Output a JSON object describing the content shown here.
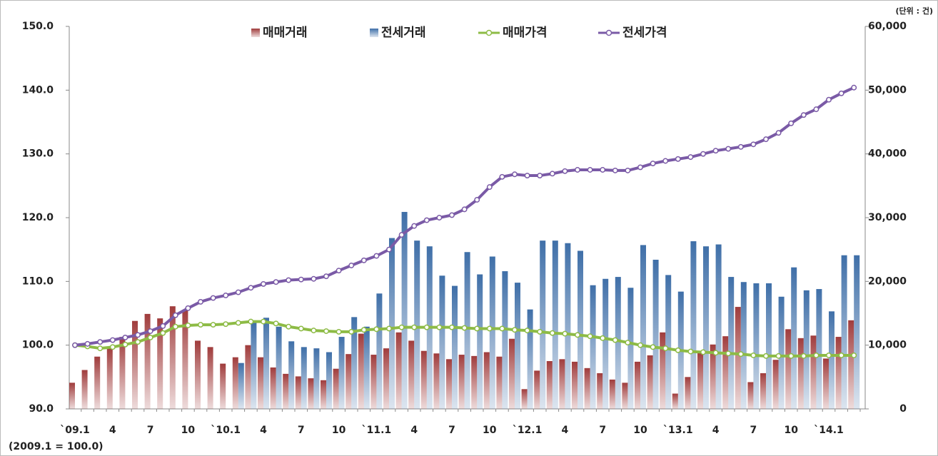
{
  "chart_data": {
    "type": "bar_line",
    "unit_note": "(단위 : 건)",
    "base_note": "(2009.1 = 100.0)",
    "categories": [
      "`09.1",
      null,
      null,
      "4",
      null,
      null,
      "7",
      null,
      null,
      "10",
      null,
      null,
      "`10.1",
      null,
      null,
      "4",
      null,
      null,
      "7",
      null,
      null,
      "10",
      null,
      null,
      "`11.1",
      null,
      null,
      "4",
      null,
      null,
      "7",
      null,
      null,
      "10",
      null,
      null,
      "`12.1",
      null,
      null,
      "4",
      null,
      null,
      "7",
      null,
      null,
      "10",
      null,
      null,
      "`13.1",
      null,
      null,
      "4",
      null,
      null,
      "7",
      null,
      null,
      "10",
      null,
      null,
      "`14.1",
      null,
      null
    ],
    "series": [
      {
        "name": "매매거래",
        "kind": "bar",
        "axis": "y2",
        "color": "#a03c3c",
        "values": [
          4100,
          6100,
          8200,
          9700,
          11300,
          13800,
          14900,
          14200,
          16100,
          15500,
          10700,
          9700,
          7100,
          8100,
          10000,
          8100,
          6500,
          5500,
          5100,
          4800,
          4500,
          6300,
          8600,
          11800,
          8500,
          9500,
          12000,
          10700,
          9100,
          8700,
          7800,
          8500,
          8300,
          8900,
          8200,
          11000,
          3100,
          6000,
          7500,
          7800,
          7400,
          6400,
          5600,
          4600,
          4100,
          7400,
          8400,
          12000,
          2400,
          5000,
          8900,
          10100,
          11400,
          16000,
          4200,
          5600,
          7700,
          12500,
          11100,
          11500,
          7900,
          11300,
          13900
        ]
      },
      {
        "name": "전세거래",
        "kind": "bar",
        "axis": "y2",
        "color": "#3f6fa8",
        "values": [
          null,
          null,
          null,
          null,
          null,
          null,
          null,
          null,
          null,
          null,
          null,
          null,
          null,
          7200,
          13500,
          14300,
          12900,
          10600,
          9700,
          9500,
          8900,
          11300,
          14400,
          12900,
          18100,
          26800,
          30900,
          26400,
          25500,
          20900,
          19300,
          24600,
          21100,
          23900,
          21600,
          19800,
          15600,
          26400,
          26400,
          26000,
          24800,
          19400,
          20400,
          20700,
          19000,
          25700,
          23400,
          21000,
          18400,
          26300,
          25500,
          25800,
          20700,
          19900,
          19700,
          19700,
          17600,
          22200,
          18600,
          18800,
          15300,
          24100,
          24100
        ]
      },
      {
        "name": "매매가격",
        "kind": "line",
        "color": "#8dbb45",
        "values": [
          100.0,
          99.8,
          99.5,
          99.7,
          100.1,
          100.5,
          101.2,
          101.9,
          102.9,
          103.1,
          103.2,
          103.2,
          103.3,
          103.5,
          103.7,
          103.7,
          103.4,
          102.9,
          102.6,
          102.3,
          102.2,
          102.1,
          102.1,
          102.4,
          102.5,
          102.6,
          102.8,
          102.8,
          102.8,
          102.8,
          102.8,
          102.7,
          102.6,
          102.6,
          102.6,
          102.4,
          102.3,
          102.1,
          101.9,
          101.8,
          101.6,
          101.4,
          101.1,
          100.8,
          100.4,
          100.0,
          99.7,
          99.5,
          99.2,
          99.0,
          98.9,
          98.8,
          98.7,
          98.6,
          98.4,
          98.3,
          98.3,
          98.3,
          98.3,
          98.4,
          98.4,
          98.4,
          98.4
        ]
      },
      {
        "name": "전세가격",
        "kind": "line",
        "color": "#7a5aa6",
        "values": [
          100.0,
          100.2,
          100.5,
          100.8,
          101.2,
          101.6,
          102.2,
          103.0,
          104.7,
          105.8,
          106.8,
          107.4,
          107.8,
          108.3,
          109.0,
          109.6,
          109.9,
          110.2,
          110.3,
          110.4,
          110.8,
          111.7,
          112.5,
          113.3,
          114.0,
          115.0,
          117.3,
          118.7,
          119.6,
          120.0,
          120.4,
          121.3,
          122.8,
          124.8,
          126.4,
          126.8,
          126.6,
          126.6,
          126.9,
          127.3,
          127.5,
          127.5,
          127.5,
          127.4,
          127.4,
          127.9,
          128.5,
          128.9,
          129.2,
          129.5,
          130.0,
          130.5,
          130.8,
          131.1,
          131.5,
          132.3,
          133.3,
          134.8,
          136.1,
          137.0,
          138.5,
          139.5,
          140.4
        ]
      }
    ],
    "ylim": [
      90,
      150
    ],
    "yticks": [
      {
        "value": 90,
        "label": "90.0"
      },
      {
        "value": 100,
        "label": "100.0"
      },
      {
        "value": 110,
        "label": "110.0"
      },
      {
        "value": 120,
        "label": "120.0"
      },
      {
        "value": 130,
        "label": "130.0"
      },
      {
        "value": 140,
        "label": "140.0"
      },
      {
        "value": 150,
        "label": "150.0"
      }
    ],
    "y2lim": [
      0,
      60000
    ],
    "y2ticks": [
      0,
      {
        "value": 10000,
        "label": "10,000"
      },
      {
        "value": 20000,
        "label": "20,000"
      },
      {
        "value": 30000,
        "label": "30,000"
      },
      {
        "value": 40000,
        "label": "40,000"
      },
      {
        "value": 50000,
        "label": "50,000"
      },
      {
        "value": 60000,
        "label": "60,000"
      }
    ],
    "grid": false,
    "legend": "top"
  }
}
